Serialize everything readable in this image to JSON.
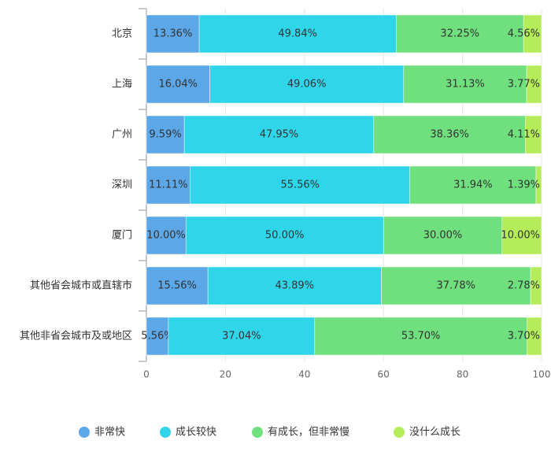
{
  "chart_data": {
    "type": "stacked-bar-horizontal",
    "categories": [
      "北京",
      "上海",
      "广州",
      "深圳",
      "厦门",
      "其他省会城市或直辖市",
      "其他非省会城市及或地区"
    ],
    "series": [
      {
        "name": "非常快",
        "color": "#5ba7e8",
        "values": [
          13.36,
          16.04,
          9.59,
          11.11,
          10.0,
          15.56,
          5.56
        ],
        "value_labels": [
          "13.36%",
          "16.04%",
          "9.59%",
          "11.11%",
          "10.00%",
          "15.56%",
          "5.56%"
        ]
      },
      {
        "name": "成长较快",
        "color": "#2fd6ea",
        "values": [
          49.84,
          49.06,
          47.95,
          55.56,
          50.0,
          43.89,
          37.04
        ],
        "value_labels": [
          "49.84%",
          "49.06%",
          "47.95%",
          "55.56%",
          "50.00%",
          "43.89%",
          "37.04%"
        ]
      },
      {
        "name": "有成长，但非常慢",
        "color": "#6fe07d",
        "values": [
          32.25,
          31.13,
          38.36,
          31.94,
          30.0,
          37.78,
          53.7
        ],
        "value_labels": [
          "32.25%",
          "31.13%",
          "38.36%",
          "31.94%",
          "30.00%",
          "37.78%",
          "53.70%"
        ]
      },
      {
        "name": "没什么成长",
        "color": "#b5ec5a",
        "values": [
          4.56,
          3.77,
          4.11,
          1.39,
          10.0,
          2.78,
          3.7
        ],
        "value_labels": [
          "4.56%",
          "3.77%",
          "4.11%",
          "1.39%",
          "10.00%",
          "2.78%",
          "3.70%"
        ]
      }
    ],
    "xlim": [
      0,
      100
    ],
    "xticks": [
      0,
      20,
      40,
      60,
      80,
      100
    ],
    "grid": true
  }
}
